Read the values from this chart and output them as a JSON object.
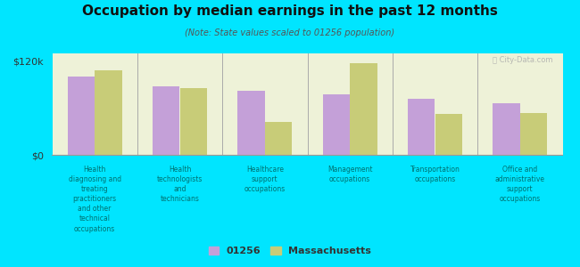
{
  "title": "Occupation by median earnings in the past 12 months",
  "subtitle": "(Note: State values scaled to 01256 population)",
  "background_color": "#00e5ff",
  "plot_bg_color": "#eef2d8",
  "categories": [
    "Health\ndiagnosing and\ntreating\npractitioners\nand other\ntechnical\noccupations",
    "Health\ntechnologists\nand\ntechnicians",
    "Healthcare\nsupport\noccupations",
    "Management\noccupations",
    "Transportation\noccupations",
    "Office and\nadministrative\nsupport\noccupations"
  ],
  "values_01256": [
    100000,
    88000,
    82000,
    78000,
    72000,
    66000
  ],
  "values_mass": [
    108000,
    86000,
    42000,
    118000,
    52000,
    54000
  ],
  "color_01256": "#c4a0d8",
  "color_mass": "#c8cc78",
  "ylim": [
    0,
    130000
  ],
  "yticks": [
    0,
    120000
  ],
  "ytick_labels": [
    "$0",
    "$120k"
  ],
  "legend_01256": "01256",
  "legend_mass": "Massachusetts",
  "watermark": "Ⓜ City-Data.com"
}
